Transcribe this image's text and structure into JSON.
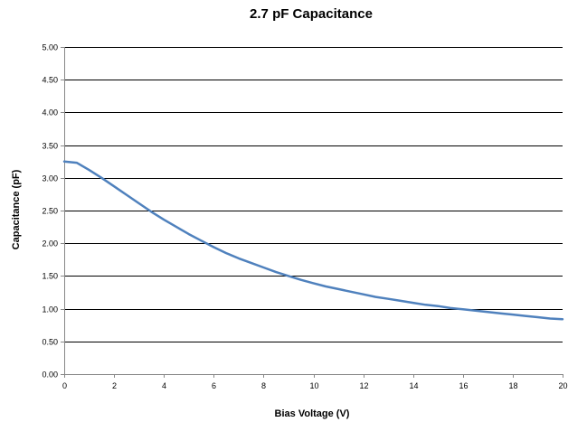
{
  "chart_data": {
    "type": "line",
    "title": "2.7 pF Capacitance",
    "xlabel": "Bias Voltage (V)",
    "ylabel": "Capacitance (pF)",
    "xlim": [
      0,
      20
    ],
    "ylim": [
      0,
      5
    ],
    "x_ticks": [
      "0",
      "2",
      "4",
      "6",
      "8",
      "10",
      "12",
      "14",
      "16",
      "18",
      "20"
    ],
    "y_ticks": [
      "0.00",
      "0.50",
      "1.00",
      "1.50",
      "2.00",
      "2.50",
      "3.00",
      "3.50",
      "4.00",
      "4.50",
      "5.00"
    ],
    "grid": true,
    "legend": false,
    "series_color": "#4f81bd",
    "series": [
      {
        "x": [
          0,
          0.5,
          1,
          1.5,
          2,
          2.5,
          3,
          3.5,
          4,
          4.5,
          5,
          5.5,
          6,
          6.5,
          7,
          7.5,
          8,
          8.5,
          9,
          9.5,
          10,
          10.5,
          11,
          11.5,
          12,
          12.5,
          13,
          13.5,
          14,
          14.5,
          15,
          15.5,
          16,
          16.5,
          17,
          17.5,
          18,
          18.5,
          19,
          19.5,
          20
        ],
        "values": [
          3.25,
          3.23,
          3.12,
          3.0,
          2.87,
          2.74,
          2.61,
          2.48,
          2.36,
          2.25,
          2.14,
          2.04,
          1.94,
          1.85,
          1.77,
          1.7,
          1.63,
          1.56,
          1.5,
          1.44,
          1.39,
          1.34,
          1.3,
          1.26,
          1.22,
          1.18,
          1.15,
          1.12,
          1.09,
          1.06,
          1.04,
          1.01,
          0.99,
          0.97,
          0.95,
          0.93,
          0.91,
          0.89,
          0.87,
          0.85,
          0.84
        ]
      }
    ]
  }
}
